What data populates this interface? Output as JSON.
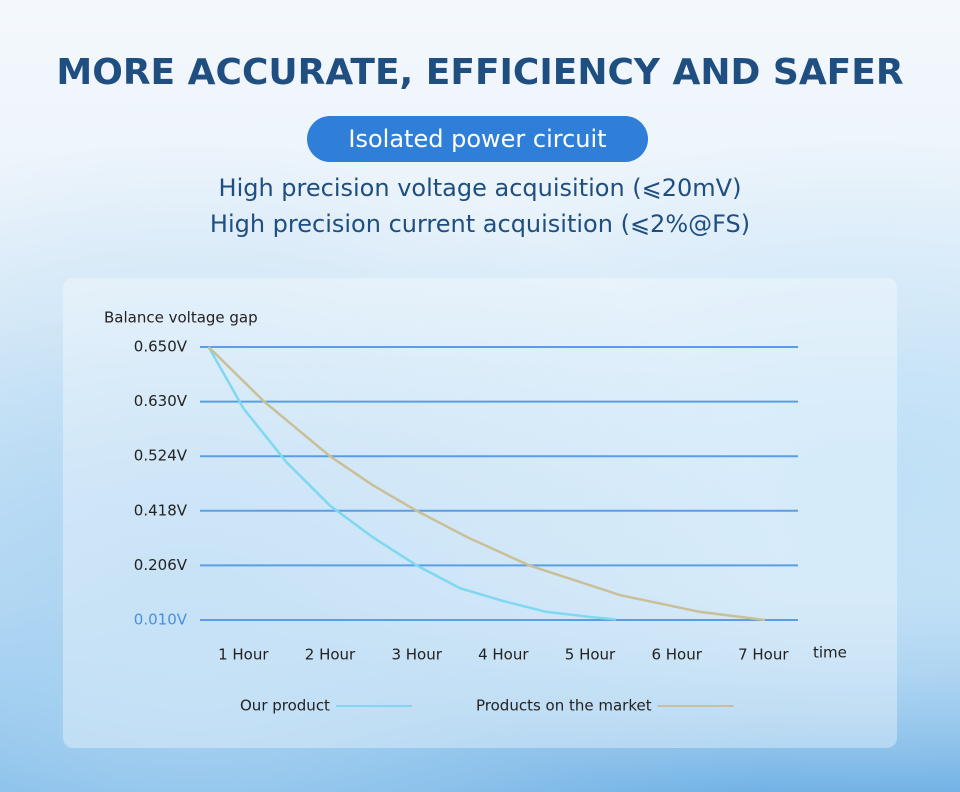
{
  "header": {
    "title": "MORE ACCURATE, EFFICIENCY AND SAFER",
    "badge": "Isolated power circuit",
    "lines": [
      "High precision voltage acquisition (⩽20mV)",
      "High precision current acquisition (⩽2%@FS)"
    ]
  },
  "chart_data": {
    "type": "line",
    "y_label": "Balance voltage gap",
    "x_label": "time",
    "xlim": [
      0.5,
      7.4
    ],
    "xticks": [
      {
        "value": 1,
        "label": "1 Hour"
      },
      {
        "value": 2,
        "label": "2 Hour"
      },
      {
        "value": 3,
        "label": "3 Hour"
      },
      {
        "value": 4,
        "label": "4 Hour"
      },
      {
        "value": 5,
        "label": "5 Hour"
      },
      {
        "value": 6,
        "label": "6 Hour"
      },
      {
        "value": 7,
        "label": "7 Hour"
      }
    ],
    "ylim": [
      0.01,
      0.65
    ],
    "yticks": [
      {
        "value": 0.01,
        "label": "0.010V"
      },
      {
        "value": 0.206,
        "label": "0.206V"
      },
      {
        "value": 0.418,
        "label": "0.418V"
      },
      {
        "value": 0.524,
        "label": "0.524V"
      },
      {
        "value": 0.63,
        "label": "0.630V"
      },
      {
        "value": 0.65,
        "label": "0.650V"
      }
    ],
    "grid": true,
    "series": [
      {
        "name": "Our product",
        "color": "#7fd8f2",
        "x": [
          0.6,
          1,
          1.5,
          2,
          2.5,
          3,
          3.5,
          4,
          4.5,
          5,
          5.3
        ],
        "values": [
          0.65,
          0.617,
          0.512,
          0.428,
          0.314,
          0.206,
          0.124,
          0.078,
          0.039,
          0.021,
          0.012
        ]
      },
      {
        "name": "Products on the market",
        "color": "#c9bf98",
        "x": [
          0.6,
          1.24,
          2,
          2.5,
          3,
          3.6,
          4.3,
          5.35,
          6.27,
          7.02
        ],
        "values": [
          0.65,
          0.63,
          0.524,
          0.467,
          0.418,
          0.313,
          0.206,
          0.099,
          0.039,
          0.01
        ]
      }
    ]
  }
}
